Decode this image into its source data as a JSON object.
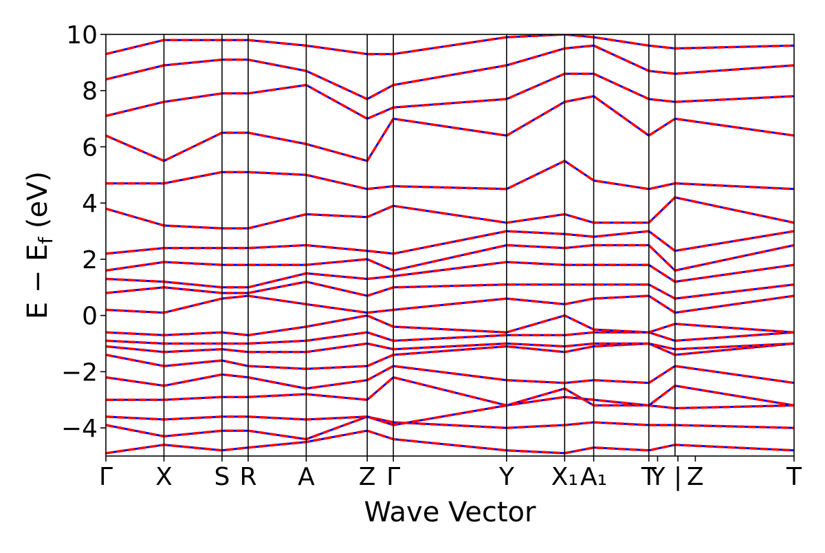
{
  "chart_data": {
    "type": "line",
    "title": "",
    "xlabel": "Wave Vector",
    "ylabel": "E − E_f (eV)",
    "ylabel_parts": {
      "main": "E − E",
      "sub": "f",
      "unit": " (eV)"
    },
    "ylim": [
      -5,
      10
    ],
    "yticks": [
      -4,
      -2,
      0,
      2,
      4,
      6,
      8,
      10
    ],
    "ytick_labels": [
      "−4",
      "−2",
      "0",
      "2",
      "4",
      "6",
      "8",
      "10"
    ],
    "xlim": [
      0,
      23.7
    ],
    "xticks": [
      {
        "x": 0.0,
        "label": "Γ"
      },
      {
        "x": 2.0,
        "label": "X"
      },
      {
        "x": 4.0,
        "label": "S"
      },
      {
        "x": 4.9,
        "label": "R"
      },
      {
        "x": 6.9,
        "label": "A"
      },
      {
        "x": 9.0,
        "label": "Z"
      },
      {
        "x": 9.9,
        "label": "Γ"
      },
      {
        "x": 13.8,
        "label": "Y"
      },
      {
        "x": 15.8,
        "label": "X₁"
      },
      {
        "x": 16.8,
        "label": "A₁"
      },
      {
        "x": 18.7,
        "label": "T"
      },
      {
        "x": 19.0,
        "label": "Y"
      },
      {
        "x": 19.7,
        "label": "|"
      },
      {
        "x": 20.3,
        "label": "Z"
      },
      {
        "x": 23.7,
        "label": "T"
      }
    ],
    "segment_boundaries": [
      2.0,
      4.0,
      4.9,
      6.9,
      9.0,
      9.9,
      13.8,
      15.8,
      16.8,
      18.7,
      19.6
    ],
    "grid": false,
    "series_styles": [
      {
        "color": "#0000ff",
        "style": "solid"
      },
      {
        "color": "#ff0000",
        "style": "dashed"
      }
    ],
    "bands": [
      {
        "x": [
          0,
          2,
          4,
          4.9,
          6.9,
          9,
          9.9,
          13.8,
          15.8,
          16.8,
          18.7,
          19.6,
          23.7
        ],
        "y": [
          -4.9,
          -4.6,
          -4.8,
          -4.7,
          -4.5,
          -4.1,
          -4.4,
          -4.8,
          -4.9,
          -4.7,
          -4.8,
          -4.6,
          -4.8
        ]
      },
      {
        "x": [
          0,
          2,
          4,
          4.9,
          6.9,
          9,
          9.9,
          13.8,
          15.8,
          16.8,
          18.7,
          19.6,
          23.7
        ],
        "y": [
          -3.9,
          -4.3,
          -4.1,
          -4.1,
          -4.4,
          -3.6,
          -3.8,
          -4.0,
          -3.9,
          -3.8,
          -3.9,
          -3.9,
          -4.0
        ]
      },
      {
        "x": [
          0,
          2,
          4,
          4.9,
          6.9,
          9,
          9.9,
          13.8,
          15.8,
          16.8,
          18.7,
          19.6,
          23.7
        ],
        "y": [
          -3.6,
          -3.7,
          -3.6,
          -3.6,
          -3.7,
          -3.6,
          -3.9,
          -3.2,
          -2.6,
          -3.2,
          -3.2,
          -3.3,
          -3.2
        ]
      },
      {
        "x": [
          0,
          2,
          4,
          4.9,
          6.9,
          9,
          9.9,
          13.8,
          15.8,
          16.8,
          18.7,
          19.6,
          23.7
        ],
        "y": [
          -3.0,
          -3.0,
          -2.9,
          -2.9,
          -2.8,
          -3.0,
          -2.2,
          -3.2,
          -2.9,
          -3.0,
          -3.2,
          -2.5,
          -3.2
        ]
      },
      {
        "x": [
          0,
          2,
          4,
          4.9,
          6.9,
          9,
          9.9,
          13.8,
          15.8,
          16.8,
          18.7,
          19.6,
          23.7
        ],
        "y": [
          -2.2,
          -2.5,
          -2.1,
          -2.2,
          -2.6,
          -2.3,
          -1.8,
          -2.3,
          -2.4,
          -2.3,
          -2.4,
          -1.8,
          -2.4
        ]
      },
      {
        "x": [
          0,
          2,
          4,
          4.9,
          6.9,
          9,
          9.9,
          13.8,
          15.8,
          16.8,
          18.7,
          19.6,
          23.7
        ],
        "y": [
          -1.4,
          -1.8,
          -1.6,
          -1.8,
          -1.9,
          -1.8,
          -1.4,
          -1.1,
          -1.3,
          -1.1,
          -1.0,
          -1.4,
          -1.0
        ]
      },
      {
        "x": [
          0,
          2,
          4,
          4.9,
          6.9,
          9,
          9.9,
          13.8,
          15.8,
          16.8,
          18.7,
          19.6,
          23.7
        ],
        "y": [
          -1.1,
          -1.3,
          -1.2,
          -1.3,
          -1.3,
          -1.0,
          -1.2,
          -1.0,
          -1.1,
          -1.0,
          -1.0,
          -1.2,
          -1.0
        ]
      },
      {
        "x": [
          0,
          2,
          4,
          4.9,
          6.9,
          9,
          9.9,
          13.8,
          15.8,
          16.8,
          18.7,
          19.6,
          23.7
        ],
        "y": [
          -0.9,
          -1.0,
          -1.0,
          -1.0,
          -0.9,
          -0.6,
          -0.9,
          -0.7,
          -0.7,
          -0.6,
          -0.6,
          -0.9,
          -0.6
        ]
      },
      {
        "x": [
          0,
          2,
          4,
          4.9,
          6.9,
          9,
          9.9,
          13.8,
          15.8,
          16.8,
          18.7,
          19.6,
          23.7
        ],
        "y": [
          -0.6,
          -0.7,
          -0.6,
          -0.7,
          -0.4,
          0.0,
          -0.4,
          -0.6,
          0.0,
          -0.5,
          -0.6,
          -0.3,
          -0.6
        ]
      },
      {
        "x": [
          0,
          2,
          4,
          4.9,
          6.9,
          9,
          9.9,
          13.8,
          15.8,
          16.8,
          18.7,
          19.6,
          23.7
        ],
        "y": [
          0.2,
          0.1,
          0.6,
          0.7,
          0.4,
          0.1,
          0.2,
          0.6,
          0.4,
          0.6,
          0.7,
          0.1,
          0.7
        ]
      },
      {
        "x": [
          0,
          2,
          4,
          4.9,
          6.9,
          9,
          9.9,
          13.8,
          15.8,
          16.8,
          18.7,
          19.6,
          23.7
        ],
        "y": [
          0.8,
          1.0,
          0.8,
          0.8,
          1.2,
          0.7,
          1.0,
          1.1,
          1.1,
          1.1,
          1.1,
          0.6,
          1.1
        ]
      },
      {
        "x": [
          0,
          2,
          4,
          4.9,
          6.9,
          9,
          9.9,
          13.8,
          15.8,
          16.8,
          18.7,
          19.6,
          23.7
        ],
        "y": [
          1.3,
          1.2,
          1.0,
          1.0,
          1.5,
          1.3,
          1.4,
          1.9,
          1.8,
          1.8,
          1.8,
          1.2,
          1.8
        ]
      },
      {
        "x": [
          0,
          2,
          4,
          4.9,
          6.9,
          9,
          9.9,
          13.8,
          15.8,
          16.8,
          18.7,
          19.6,
          23.7
        ],
        "y": [
          1.6,
          1.9,
          1.8,
          1.8,
          1.8,
          2.0,
          1.6,
          2.5,
          2.4,
          2.5,
          2.5,
          1.6,
          2.5
        ]
      },
      {
        "x": [
          0,
          2,
          4,
          4.9,
          6.9,
          9,
          9.9,
          13.8,
          15.8,
          16.8,
          18.7,
          19.6,
          23.7
        ],
        "y": [
          2.2,
          2.4,
          2.4,
          2.4,
          2.5,
          2.3,
          2.2,
          3.0,
          2.9,
          2.8,
          3.0,
          2.3,
          3.0
        ]
      },
      {
        "x": [
          0,
          2,
          4,
          4.9,
          6.9,
          9,
          9.9,
          13.8,
          15.8,
          16.8,
          18.7,
          19.6,
          23.7
        ],
        "y": [
          3.8,
          3.2,
          3.1,
          3.1,
          3.6,
          3.5,
          3.9,
          3.3,
          3.6,
          3.3,
          3.3,
          4.2,
          3.3
        ]
      },
      {
        "x": [
          0,
          2,
          4,
          4.9,
          6.9,
          9,
          9.9,
          13.8,
          15.8,
          16.8,
          18.7,
          19.6,
          23.7
        ],
        "y": [
          4.7,
          4.7,
          5.1,
          5.1,
          5.0,
          4.5,
          4.6,
          4.5,
          5.5,
          4.8,
          4.5,
          4.7,
          4.5
        ]
      },
      {
        "x": [
          0,
          2,
          4,
          4.9,
          6.9,
          9,
          9.9,
          13.8,
          15.8,
          16.8,
          18.7,
          19.6,
          23.7
        ],
        "y": [
          6.4,
          5.5,
          6.5,
          6.5,
          6.1,
          5.5,
          7.0,
          6.4,
          7.6,
          7.8,
          6.4,
          7.0,
          6.4
        ]
      },
      {
        "x": [
          0,
          2,
          4,
          4.9,
          6.9,
          9,
          9.9,
          13.8,
          15.8,
          16.8,
          18.7,
          19.6,
          23.7
        ],
        "y": [
          7.1,
          7.6,
          7.9,
          7.9,
          8.2,
          7.0,
          7.4,
          7.7,
          8.6,
          8.6,
          7.7,
          7.6,
          7.8
        ]
      },
      {
        "x": [
          0,
          2,
          4,
          4.9,
          6.9,
          9,
          9.9,
          13.8,
          15.8,
          16.8,
          18.7,
          19.6,
          23.7
        ],
        "y": [
          8.4,
          8.9,
          9.1,
          9.1,
          8.7,
          7.7,
          8.2,
          8.9,
          9.5,
          9.6,
          8.7,
          8.6,
          8.9
        ]
      },
      {
        "x": [
          0,
          2,
          4,
          4.9,
          6.9,
          9,
          9.9,
          13.8,
          15.8,
          16.8,
          18.7,
          19.6,
          23.7
        ],
        "y": [
          9.3,
          9.8,
          9.8,
          9.8,
          9.6,
          9.3,
          9.3,
          9.9,
          10.0,
          9.9,
          9.6,
          9.5,
          9.6
        ]
      }
    ]
  }
}
